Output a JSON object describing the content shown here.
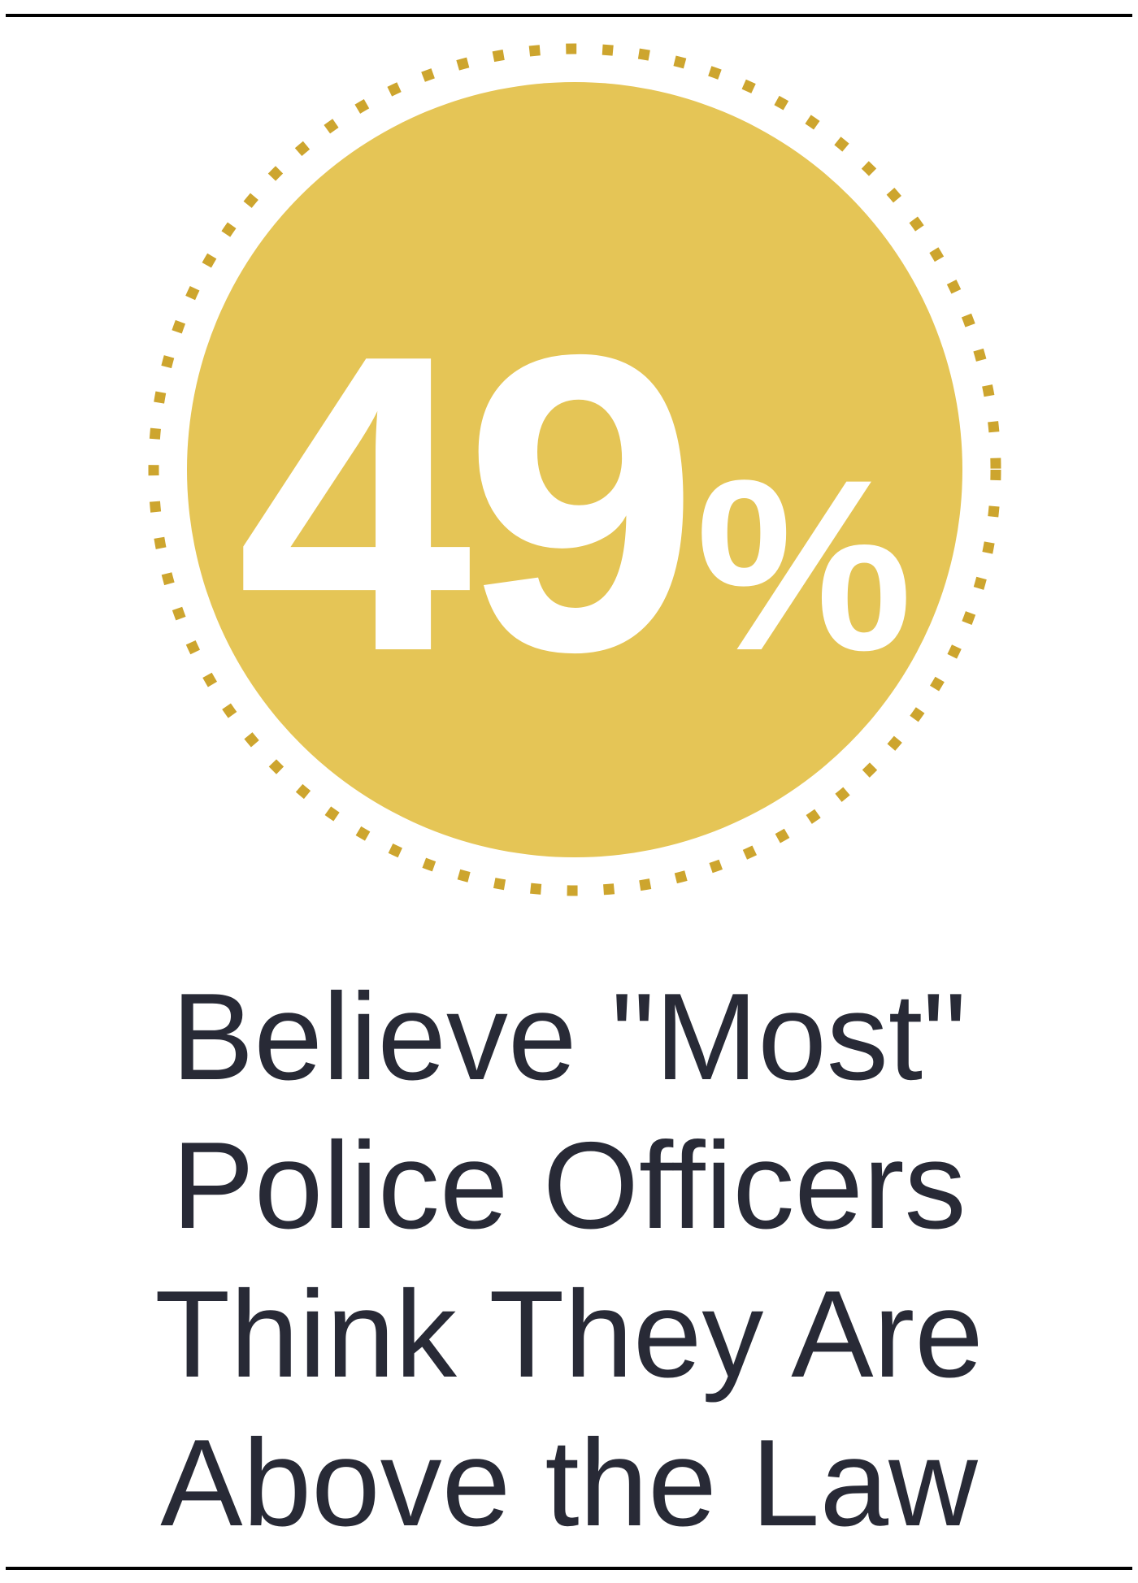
{
  "stat": {
    "value": "49",
    "unit": "%"
  },
  "caption": {
    "lines": [
      "Believe \"Most\"",
      "Police Officers",
      "Think They Are",
      "Above the Law"
    ]
  },
  "colors": {
    "circle": "#e5c556",
    "dots": "#cda52e",
    "text": "#282a36",
    "rules": "#000000"
  }
}
